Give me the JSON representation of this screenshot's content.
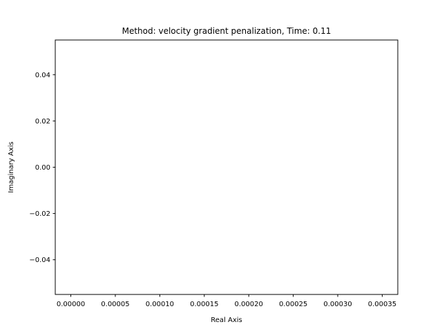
{
  "chart_data": {
    "type": "scatter",
    "title": "Method: velocity gradient penalization, Time: 0.11",
    "xlabel": "Real Axis",
    "ylabel": "Imaginary Axis",
    "xlim": [
      -1.75e-05,
      0.0003675
    ],
    "ylim": [
      -0.055,
      0.055
    ],
    "x_ticks": [
      0,
      5e-05,
      0.0001,
      0.00015,
      0.0002,
      0.00025,
      0.0003,
      0.00035
    ],
    "x_tick_labels": [
      "0.00000",
      "0.00005",
      "0.00010",
      "0.00015",
      "0.00020",
      "0.00025",
      "0.00030",
      "0.00035"
    ],
    "y_ticks": [
      0.04,
      0.02,
      0,
      -0.02,
      -0.04
    ],
    "y_tick_labels": [
      "0.04",
      "0.02",
      "0.00",
      "−0.02",
      "−0.04"
    ],
    "series": [
      {
        "x": [],
        "y": []
      }
    ],
    "grid": false,
    "legend": "none"
  }
}
